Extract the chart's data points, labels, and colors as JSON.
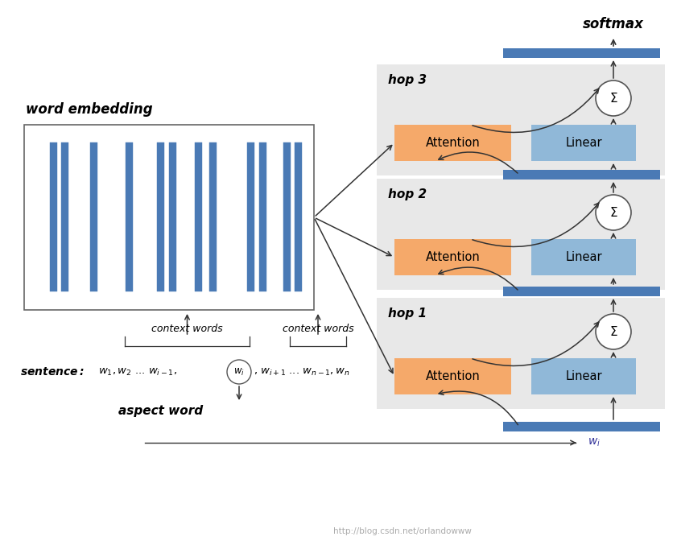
{
  "bg_color": "#ffffff",
  "fig_width": 8.41,
  "fig_height": 6.82,
  "bar_color": "#4a7ab5",
  "hop_bg_color": "#e8e8e8",
  "attention_color": "#f5a96a",
  "linear_color": "#90b8d8",
  "blue_bar_color": "#4a7ab5",
  "word_embed_label": "word embedding",
  "context_words_text": "context words",
  "aspect_word_text": "aspect word",
  "softmax_text": "softmax",
  "hop_labels": [
    "hop 1",
    "hop 2",
    "hop 3"
  ],
  "attention_text": "Attention",
  "linear_text": "Linear",
  "watermark": "http://blog.csdn.net/orlandowww"
}
